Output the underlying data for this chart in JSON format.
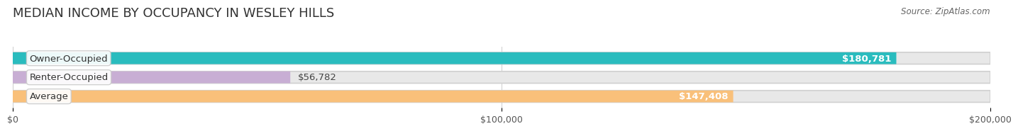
{
  "title": "MEDIAN INCOME BY OCCUPANCY IN WESLEY HILLS",
  "source": "Source: ZipAtlas.com",
  "categories": [
    "Owner-Occupied",
    "Renter-Occupied",
    "Average"
  ],
  "values": [
    180781,
    56782,
    147408
  ],
  "bar_colors": [
    "#2abcbe",
    "#c8aed4",
    "#f9c07a"
  ],
  "bar_bg_color": "#e8e8e8",
  "value_labels": [
    "$180,781",
    "$56,782",
    "$147,408"
  ],
  "value_label_inside": [
    true,
    false,
    true
  ],
  "value_label_colors": [
    "white",
    "#444444",
    "white"
  ],
  "xlim": [
    0,
    200000
  ],
  "xtick_values": [
    0,
    100000,
    200000
  ],
  "xtick_labels": [
    "$0",
    "$100,000",
    "$200,000"
  ],
  "title_fontsize": 13,
  "label_fontsize": 9.5,
  "tick_fontsize": 9,
  "source_fontsize": 8.5,
  "bar_height": 0.62,
  "bg_color": "#ffffff"
}
